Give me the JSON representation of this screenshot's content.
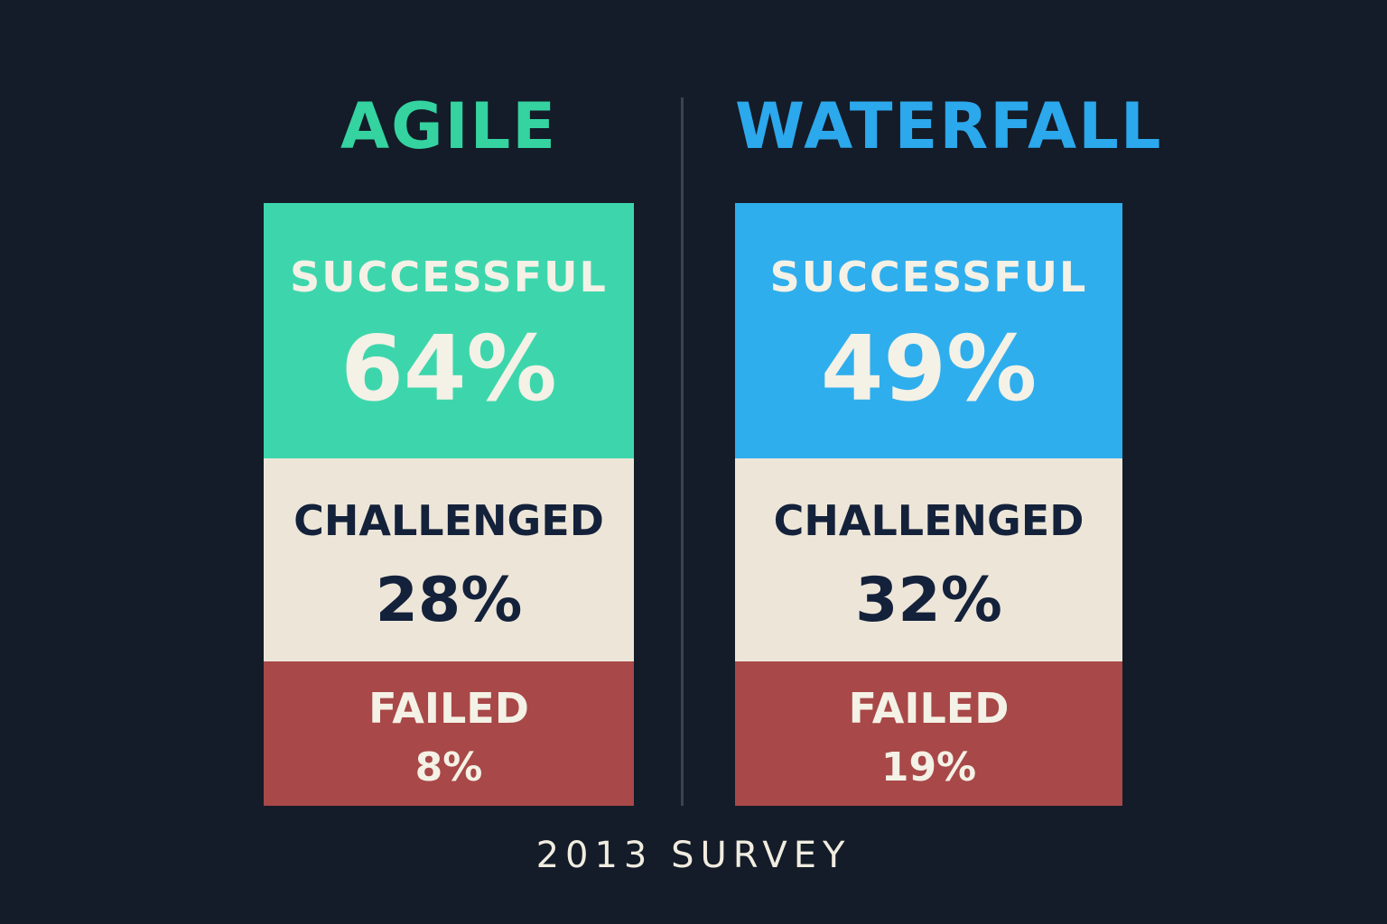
{
  "columns": [
    {
      "title": "AGILE",
      "segments": [
        {
          "label": "SUCCESSFUL",
          "value": "64%"
        },
        {
          "label": "CHALLENGED",
          "value": "28%"
        },
        {
          "label": "FAILED",
          "value": "8%"
        }
      ]
    },
    {
      "title": "WATERFALL",
      "segments": [
        {
          "label": "SUCCESSFUL",
          "value": "49%"
        },
        {
          "label": "CHALLENGED",
          "value": "32%"
        },
        {
          "label": "FAILED",
          "value": "19%"
        }
      ]
    }
  ],
  "footer": "2013 SURVEY"
}
